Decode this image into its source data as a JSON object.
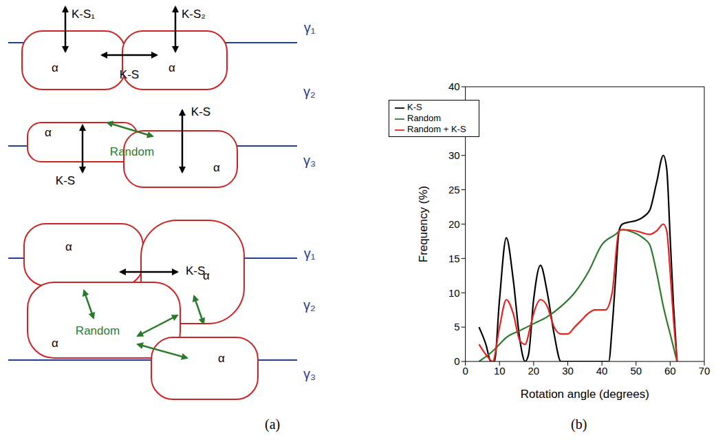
{
  "panels": [
    "(a)",
    "(b)"
  ],
  "diagram": {
    "alpha": "α",
    "ks": "K-S",
    "ks1": "K-S₁",
    "ks2": "K-S₂",
    "random": "Random",
    "gamma": [
      "γ₁",
      "γ₂",
      "γ₃"
    ]
  },
  "chart_data": {
    "type": "line",
    "x_label": "Rotation angle (degrees)",
    "y_label": "Frequency (%)",
    "xlim": [
      0,
      70
    ],
    "xticks": [
      0,
      10,
      20,
      30,
      40,
      50,
      60,
      70
    ],
    "ylim": [
      0,
      40
    ],
    "yticks": [
      0,
      5,
      10,
      15,
      20,
      25,
      30,
      35,
      40
    ],
    "grid": false,
    "legend": "upper left",
    "series": [
      {
        "name": "K-S",
        "color": "#000000",
        "x": [
          4,
          6,
          7.5,
          8.5,
          10,
          12,
          14,
          16,
          17.5,
          18.5,
          20,
          22,
          24,
          26,
          28,
          30,
          35,
          40,
          42,
          43,
          44,
          45,
          46,
          48,
          50,
          52,
          54,
          56,
          58,
          59,
          60,
          61,
          62
        ],
        "values": [
          5,
          2.5,
          0,
          0,
          9,
          18,
          12,
          3,
          0,
          1,
          9,
          14,
          10,
          4,
          0,
          0,
          0,
          0,
          0,
          5,
          12,
          19,
          20,
          20.3,
          20.5,
          21,
          22,
          26,
          30,
          28,
          18,
          8,
          0
        ]
      },
      {
        "name": "Random",
        "color": "#2a7a2a",
        "x": [
          4,
          8,
          10,
          12,
          16,
          20,
          24,
          28,
          32,
          36,
          40,
          44,
          46,
          48,
          52,
          54,
          56,
          58,
          60,
          62
        ],
        "values": [
          0,
          1.5,
          2.5,
          3.5,
          4.5,
          5.5,
          6.5,
          8,
          10,
          13,
          17,
          18.5,
          19.2,
          19,
          18,
          17,
          13,
          8,
          4,
          0
        ]
      },
      {
        "name": "Random + K-S",
        "color": "#e8211c",
        "x": [
          4,
          6,
          8,
          10,
          12,
          14,
          16,
          17.5,
          19,
          20,
          22,
          24,
          26,
          28,
          30,
          32,
          34,
          36,
          38,
          41,
          43,
          45,
          46,
          50,
          54,
          56,
          58,
          59,
          60,
          61,
          62
        ],
        "values": [
          2.5,
          1,
          0,
          5,
          9,
          7,
          3,
          2.5,
          5,
          7,
          9,
          8,
          5,
          4,
          4,
          5,
          6,
          7,
          7.5,
          7.5,
          10,
          19,
          19.2,
          19,
          18.5,
          19,
          20,
          19,
          13,
          6,
          0
        ]
      }
    ]
  }
}
